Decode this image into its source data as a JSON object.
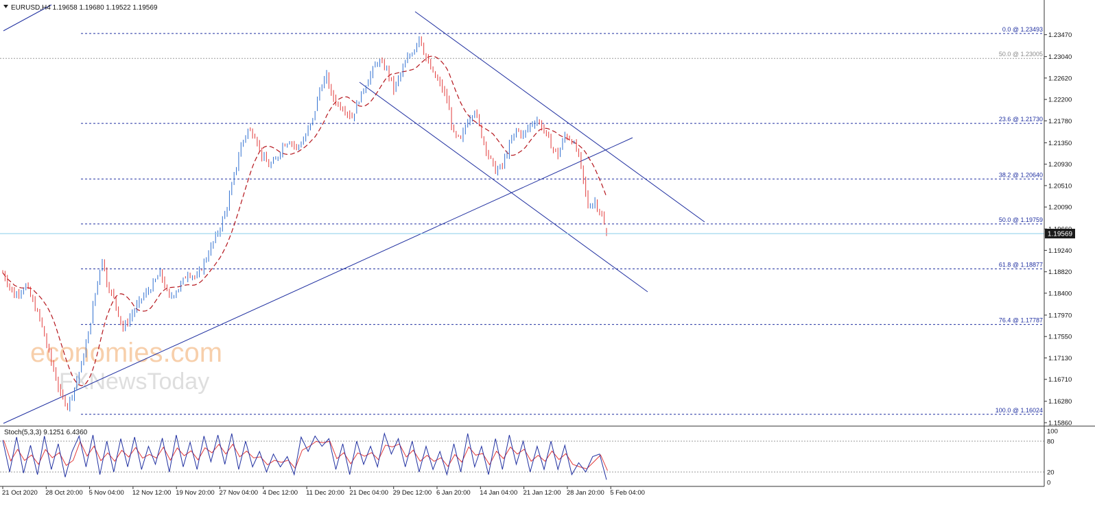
{
  "header": {
    "symbol_line": "EURUSD,H4  1.19658 1.19680 1.19522 1.19569"
  },
  "indicator": {
    "label": "Stoch(5,3,3) 9.1251 6.4360",
    "axis_ticks": [
      "100",
      "80",
      "20",
      "0"
    ]
  },
  "watermark": {
    "line1": "economies.com",
    "line2": "FXNewsToday"
  },
  "colors": {
    "bull": "#2f6fd0",
    "bear": "#e23b3b",
    "trendline": "#1f2fa0",
    "fib": "#1f2fa0",
    "ma": "#b4141b",
    "price_line": "#87cde8",
    "stoch_main": "#1f2fa0",
    "stoch_signal": "#e23b3b"
  },
  "chart_data": {
    "type": "candlestick",
    "symbol": "EURUSD",
    "timeframe": "H4",
    "last_price": "1.19569",
    "ohlc": {
      "open": 1.19658,
      "high": 1.1968,
      "low": 1.19522,
      "close": 1.19569
    },
    "y_ticks": [
      "1.23470",
      "1.23040",
      "1.22620",
      "1.22200",
      "1.21780",
      "1.21350",
      "1.20930",
      "1.20510",
      "1.20090",
      "1.19660",
      "1.19240",
      "1.18820",
      "1.18400",
      "1.17970",
      "1.17550",
      "1.17130",
      "1.16710",
      "1.16280",
      "1.15860"
    ],
    "y_range": [
      1.1586,
      1.2368
    ],
    "x_ticks": [
      "21 Oct 2020",
      "28 Oct 20:00",
      "5 Nov 04:00",
      "12 Nov 12:00",
      "19 Nov 20:00",
      "27 Nov 04:00",
      "4 Dec 12:00",
      "11 Dec 20:00",
      "21 Dec 04:00",
      "29 Dec 12:00",
      "6 Jan 20:00",
      "14 Jan 04:00",
      "21 Jan 12:00",
      "28 Jan 20:00",
      "5 Feb 04:00"
    ],
    "fib_levels": [
      {
        "label": "0.0 @ 1.23493",
        "price": 1.23493
      },
      {
        "label": "50.0 @ 1.23005",
        "price": 1.23005,
        "secondary": true
      },
      {
        "label": "23.6 @ 1.21730",
        "price": 1.2173
      },
      {
        "label": "38.2 @ 1.20640",
        "price": 1.2064
      },
      {
        "label": "50.0 @ 1.19759",
        "price": 1.19759
      },
      {
        "label": "61.8 @ 1.18877",
        "price": 1.18877
      },
      {
        "label": "76.4 @ 1.17787",
        "price": 1.17787
      },
      {
        "label": "100.0 @ 1.16024",
        "price": 1.16024
      }
    ],
    "price_path": [
      [
        0,
        1.188
      ],
      [
        5,
        1.1835
      ],
      [
        10,
        1.1855
      ],
      [
        16,
        1.179
      ],
      [
        21,
        1.1705
      ],
      [
        25,
        1.164
      ],
      [
        28,
        1.162
      ],
      [
        31,
        1.1655
      ],
      [
        34,
        1.17
      ],
      [
        37,
        1.176
      ],
      [
        40,
        1.184
      ],
      [
        43,
        1.191
      ],
      [
        45,
        1.186
      ],
      [
        48,
        1.183
      ],
      [
        52,
        1.177
      ],
      [
        56,
        1.18
      ],
      [
        60,
        1.183
      ],
      [
        64,
        1.185
      ],
      [
        68,
        1.188
      ],
      [
        72,
        1.183
      ],
      [
        76,
        1.185
      ],
      [
        80,
        1.188
      ],
      [
        84,
        1.187
      ],
      [
        88,
        1.191
      ],
      [
        91,
        1.194
      ],
      [
        94,
        1.197
      ],
      [
        97,
        1.201
      ],
      [
        100,
        1.207
      ],
      [
        103,
        1.213
      ],
      [
        106,
        1.216
      ],
      [
        109,
        1.215
      ],
      [
        112,
        1.211
      ],
      [
        115,
        1.209
      ],
      [
        118,
        1.21
      ],
      [
        121,
        1.213
      ],
      [
        124,
        1.214
      ],
      [
        127,
        1.2125
      ],
      [
        130,
        1.214
      ],
      [
        134,
        1.218
      ],
      [
        137,
        1.224
      ],
      [
        140,
        1.2265
      ],
      [
        142,
        1.223
      ],
      [
        145,
        1.221
      ],
      [
        148,
        1.22
      ],
      [
        151,
        1.2185
      ],
      [
        154,
        1.222
      ],
      [
        158,
        1.226
      ],
      [
        162,
        1.2295
      ],
      [
        166,
        1.228
      ],
      [
        169,
        1.224
      ],
      [
        172,
        1.227
      ],
      [
        175,
        1.23
      ],
      [
        178,
        1.232
      ],
      [
        180,
        1.2345
      ],
      [
        183,
        1.23
      ],
      [
        186,
        1.227
      ],
      [
        189,
        1.225
      ],
      [
        192,
        1.222
      ],
      [
        195,
        1.215
      ],
      [
        198,
        1.214
      ],
      [
        201,
        1.218
      ],
      [
        204,
        1.22
      ],
      [
        207,
        1.215
      ],
      [
        210,
        1.211
      ],
      [
        213,
        1.208
      ],
      [
        216,
        1.209
      ],
      [
        219,
        1.213
      ],
      [
        222,
        1.216
      ],
      [
        225,
        1.215
      ],
      [
        228,
        1.217
      ],
      [
        231,
        1.218
      ],
      [
        234,
        1.216
      ],
      [
        237,
        1.213
      ],
      [
        240,
        1.211
      ],
      [
        243,
        1.215
      ],
      [
        246,
        1.214
      ],
      [
        249,
        1.211
      ],
      [
        251,
        1.206
      ],
      [
        253,
        1.201
      ],
      [
        256,
        1.202
      ],
      [
        259,
        1.199
      ],
      [
        261,
        1.1957
      ]
    ],
    "stoch_path": [
      [
        0,
        82
      ],
      [
        3,
        20
      ],
      [
        6,
        88
      ],
      [
        9,
        18
      ],
      [
        12,
        72
      ],
      [
        15,
        15
      ],
      [
        18,
        90
      ],
      [
        21,
        25
      ],
      [
        24,
        75
      ],
      [
        27,
        10
      ],
      [
        30,
        60
      ],
      [
        33,
        90
      ],
      [
        36,
        30
      ],
      [
        39,
        92
      ],
      [
        42,
        15
      ],
      [
        45,
        80
      ],
      [
        48,
        20
      ],
      [
        51,
        85
      ],
      [
        54,
        30
      ],
      [
        57,
        88
      ],
      [
        60,
        25
      ],
      [
        63,
        70
      ],
      [
        66,
        35
      ],
      [
        69,
        86
      ],
      [
        72,
        20
      ],
      [
        75,
        92
      ],
      [
        78,
        30
      ],
      [
        81,
        78
      ],
      [
        84,
        25
      ],
      [
        87,
        90
      ],
      [
        90,
        40
      ],
      [
        93,
        92
      ],
      [
        96,
        35
      ],
      [
        99,
        95
      ],
      [
        102,
        25
      ],
      [
        105,
        80
      ],
      [
        108,
        30
      ],
      [
        111,
        60
      ],
      [
        114,
        20
      ],
      [
        117,
        55
      ],
      [
        120,
        30
      ],
      [
        123,
        50
      ],
      [
        126,
        15
      ],
      [
        129,
        88
      ],
      [
        132,
        60
      ],
      [
        135,
        90
      ],
      [
        138,
        70
      ],
      [
        141,
        85
      ],
      [
        144,
        25
      ],
      [
        147,
        75
      ],
      [
        150,
        15
      ],
      [
        153,
        80
      ],
      [
        156,
        35
      ],
      [
        159,
        70
      ],
      [
        162,
        30
      ],
      [
        165,
        95
      ],
      [
        168,
        55
      ],
      [
        171,
        85
      ],
      [
        174,
        30
      ],
      [
        177,
        80
      ],
      [
        180,
        20
      ],
      [
        183,
        70
      ],
      [
        186,
        25
      ],
      [
        189,
        60
      ],
      [
        192,
        15
      ],
      [
        195,
        75
      ],
      [
        198,
        20
      ],
      [
        201,
        95
      ],
      [
        204,
        30
      ],
      [
        207,
        70
      ],
      [
        210,
        15
      ],
      [
        213,
        85
      ],
      [
        216,
        25
      ],
      [
        219,
        92
      ],
      [
        222,
        35
      ],
      [
        225,
        80
      ],
      [
        228,
        20
      ],
      [
        231,
        70
      ],
      [
        234,
        25
      ],
      [
        237,
        80
      ],
      [
        240,
        25
      ],
      [
        243,
        72
      ],
      [
        246,
        15
      ],
      [
        249,
        38
      ],
      [
        252,
        20
      ],
      [
        255,
        50
      ],
      [
        258,
        55
      ],
      [
        261,
        5
      ]
    ],
    "stoch_range": [
      0,
      100
    ],
    "stoch_levels": [
      80,
      20
    ]
  }
}
